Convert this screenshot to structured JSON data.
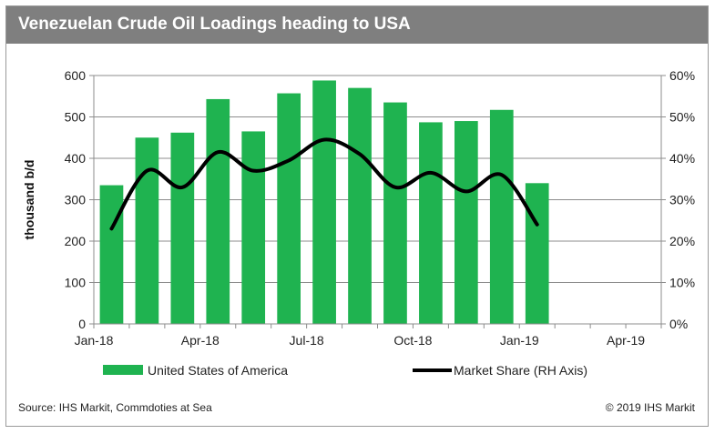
{
  "chart_data": {
    "type": "bar",
    "title": "Venezuelan Crude Oil  Loadings heading to USA",
    "ylabel": "thousand b/d",
    "y2label": "",
    "ylim": [
      0,
      600
    ],
    "y2lim": [
      0,
      0.6
    ],
    "yticks": [
      "0",
      "100",
      "200",
      "300",
      "400",
      "500",
      "600"
    ],
    "y2ticks": [
      "0%",
      "10%",
      "20%",
      "30%",
      "40%",
      "50%",
      "60%"
    ],
    "xtick_labels": [
      "Jan-18",
      "Apr-18",
      "Jul-18",
      "Oct-18",
      "Jan-19",
      "Apr-19"
    ],
    "x_range_months": 16,
    "grid": "horizontal",
    "legend_position": "bottom",
    "categories": [
      "Jan-18",
      "Feb-18",
      "Mar-18",
      "Apr-18",
      "May-18",
      "Jun-18",
      "Jul-18",
      "Aug-18",
      "Sep-18",
      "Oct-18",
      "Nov-18",
      "Dec-18",
      "Jan-19"
    ],
    "series": [
      {
        "name": "United States of America",
        "kind": "bar",
        "axis": "left",
        "color": "#1fb350",
        "values": [
          335,
          450,
          462,
          543,
          465,
          557,
          588,
          570,
          535,
          487,
          490,
          517,
          340
        ]
      },
      {
        "name": "Market Share (RH Axis)",
        "kind": "line",
        "axis": "right",
        "color": "#000000",
        "values": [
          0.23,
          0.37,
          0.33,
          0.415,
          0.37,
          0.395,
          0.445,
          0.41,
          0.33,
          0.365,
          0.32,
          0.36,
          0.24
        ]
      }
    ]
  },
  "footer": {
    "source": "Source: IHS Markit, Commdoties at Sea",
    "copyright": "© 2019 IHS Markit"
  }
}
